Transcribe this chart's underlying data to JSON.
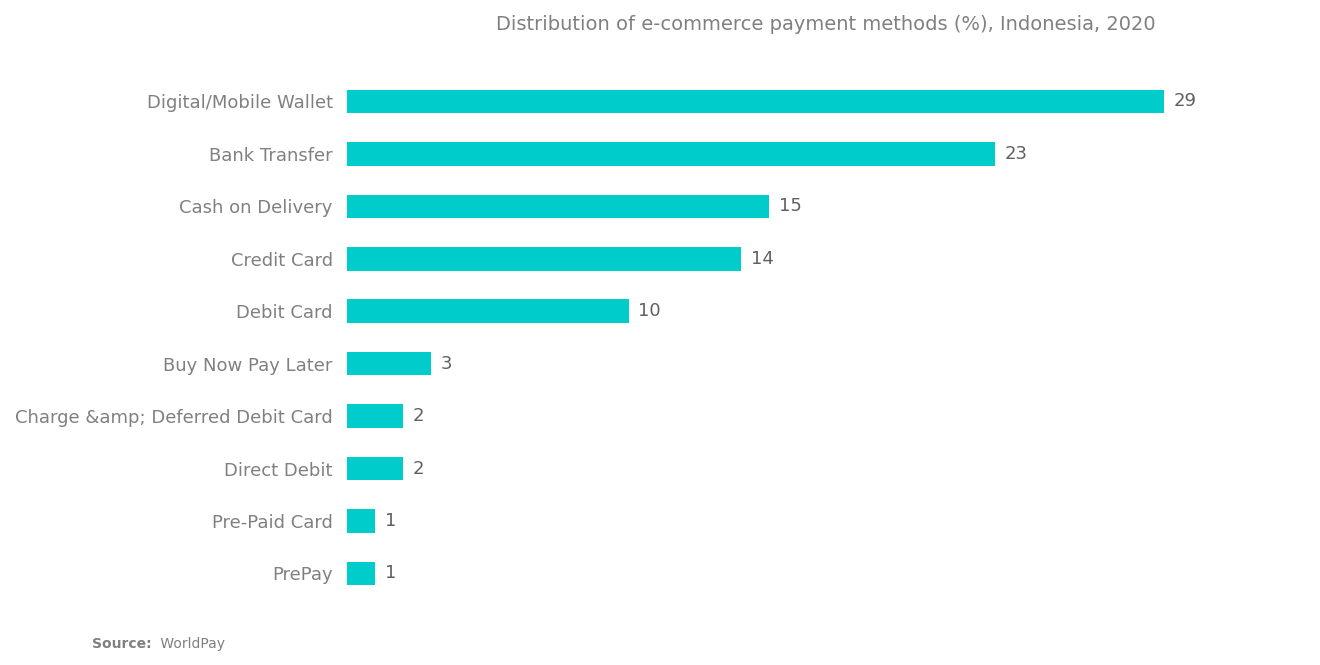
{
  "title": "Distribution of e-commerce payment methods (%), Indonesia, 2020",
  "categories": [
    "PrePay",
    "Pre-Paid Card",
    "Direct Debit",
    "Charge &amp; Deferred Debit Card",
    "Buy Now Pay Later",
    "Debit Card",
    "Credit Card",
    "Cash on Delivery",
    "Bank Transfer",
    "Digital/Mobile Wallet"
  ],
  "values": [
    1,
    1,
    2,
    2,
    3,
    10,
    14,
    15,
    23,
    29
  ],
  "bar_color": "#00CCCC",
  "background_color": "#ffffff",
  "label_color": "#808080",
  "value_color": "#606060",
  "source_bold": "Source:",
  "source_normal": " WorldPay",
  "title_fontsize": 14,
  "label_fontsize": 13,
  "value_fontsize": 13,
  "xlim": [
    0,
    34
  ]
}
